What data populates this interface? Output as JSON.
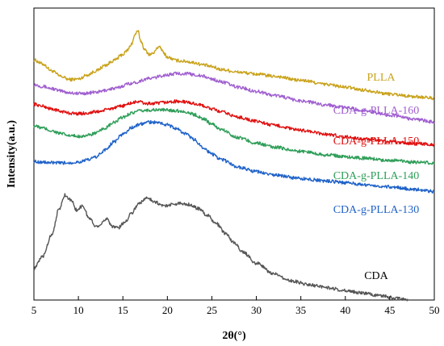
{
  "chart_data": {
    "type": "line",
    "title": "",
    "xlabel": "2θ(°)",
    "ylabel": "Intensity(a.u.)",
    "xlim": [
      5,
      50
    ],
    "xticks": [
      "5",
      "10",
      "15",
      "20",
      "25",
      "30",
      "35",
      "40",
      "45",
      "50"
    ],
    "y_ticks_shown": false,
    "grid": false,
    "legend": "inline labels on the right",
    "series": [
      {
        "name": "PLLA",
        "color": "#c9a21a",
        "x": [
          5,
          6,
          7,
          8,
          9,
          10,
          11,
          12,
          13,
          14,
          15,
          15.5,
          16,
          16.4,
          16.7,
          17,
          17.5,
          18,
          18.5,
          18.8,
          19.2,
          19.6,
          20,
          21,
          22,
          23,
          24,
          25,
          26,
          28,
          30,
          32,
          35,
          38,
          40,
          42,
          45,
          48,
          50
        ],
        "y": [
          0.88,
          0.865,
          0.84,
          0.82,
          0.808,
          0.81,
          0.825,
          0.84,
          0.86,
          0.878,
          0.9,
          0.915,
          0.94,
          0.975,
          0.985,
          0.95,
          0.915,
          0.9,
          0.905,
          0.925,
          0.925,
          0.905,
          0.89,
          0.878,
          0.875,
          0.87,
          0.862,
          0.855,
          0.845,
          0.835,
          0.828,
          0.82,
          0.805,
          0.79,
          0.78,
          0.77,
          0.755,
          0.745,
          0.74
        ]
      },
      {
        "name": "CDA-g-PLLA-160",
        "color": "#a05fd0",
        "x": [
          5,
          6,
          7,
          8,
          9,
          10,
          11,
          12,
          14,
          16,
          18,
          20,
          21,
          22,
          23,
          24,
          25,
          26,
          28,
          30,
          32,
          35,
          38,
          40,
          42,
          45,
          48,
          50
        ],
        "y": [
          0.79,
          0.783,
          0.775,
          0.766,
          0.76,
          0.757,
          0.758,
          0.762,
          0.775,
          0.795,
          0.812,
          0.825,
          0.83,
          0.83,
          0.826,
          0.82,
          0.81,
          0.8,
          0.78,
          0.765,
          0.75,
          0.73,
          0.715,
          0.705,
          0.695,
          0.678,
          0.662,
          0.652
        ]
      },
      {
        "name": "CDA-g-PLLA-150",
        "color": "#e01010",
        "x": [
          5,
          6,
          7,
          8,
          9,
          10,
          11,
          12,
          14,
          15,
          16,
          16.8,
          17.5,
          18.5,
          20,
          21,
          22,
          23,
          24,
          25,
          26,
          28,
          30,
          32,
          35,
          38,
          40,
          42,
          45,
          48,
          50
        ],
        "y": [
          0.718,
          0.71,
          0.7,
          0.692,
          0.685,
          0.683,
          0.685,
          0.69,
          0.703,
          0.712,
          0.722,
          0.728,
          0.72,
          0.72,
          0.725,
          0.728,
          0.726,
          0.72,
          0.712,
          0.7,
          0.69,
          0.67,
          0.655,
          0.64,
          0.622,
          0.607,
          0.598,
          0.59,
          0.58,
          0.573,
          0.57
        ]
      },
      {
        "name": "CDA-g-PLLA-140",
        "color": "#2e9e58",
        "x": [
          5,
          6,
          7,
          8,
          9,
          10,
          11,
          12,
          13,
          14,
          15,
          16,
          17,
          18,
          19,
          20,
          21,
          22,
          23,
          24,
          25,
          26,
          28,
          30,
          32,
          35,
          38,
          40,
          42,
          45,
          48,
          50
        ],
        "y": [
          0.638,
          0.63,
          0.62,
          0.61,
          0.602,
          0.6,
          0.603,
          0.612,
          0.63,
          0.65,
          0.67,
          0.686,
          0.693,
          0.696,
          0.697,
          0.696,
          0.694,
          0.69,
          0.68,
          0.665,
          0.645,
          0.625,
          0.595,
          0.575,
          0.56,
          0.545,
          0.532,
          0.525,
          0.52,
          0.512,
          0.505,
          0.502
        ]
      },
      {
        "name": "CDA-g-PLLA-130",
        "color": "#1f62c8",
        "x": [
          5,
          6,
          7,
          8,
          9,
          10,
          11,
          12,
          13,
          14,
          15,
          16,
          17,
          18,
          19,
          20,
          21,
          22,
          23,
          24,
          25,
          26,
          28,
          30,
          32,
          35,
          38,
          40,
          42,
          45,
          48,
          50
        ],
        "y": [
          0.508,
          0.505,
          0.503,
          0.502,
          0.503,
          0.506,
          0.513,
          0.525,
          0.55,
          0.58,
          0.608,
          0.632,
          0.645,
          0.652,
          0.65,
          0.642,
          0.628,
          0.61,
          0.588,
          0.56,
          0.535,
          0.515,
          0.487,
          0.47,
          0.458,
          0.445,
          0.436,
          0.43,
          0.423,
          0.415,
          0.405,
          0.398
        ]
      },
      {
        "name": "CDA",
        "color": "#555555",
        "x": [
          5,
          6,
          7,
          7.8,
          8.5,
          9.2,
          9.8,
          10.5,
          11.2,
          12,
          12.6,
          13.2,
          13.8,
          14.5,
          15.2,
          16,
          16.8,
          17.8,
          18.6,
          19.5,
          20.5,
          21.5,
          22.5,
          23.5,
          24.5,
          25.5,
          26.5,
          27.5,
          28.5,
          30,
          32,
          34,
          36,
          38,
          40,
          42,
          44,
          46,
          47
        ],
        "y": [
          0.115,
          0.16,
          0.24,
          0.33,
          0.385,
          0.365,
          0.33,
          0.345,
          0.3,
          0.27,
          0.28,
          0.3,
          0.27,
          0.265,
          0.285,
          0.32,
          0.355,
          0.375,
          0.36,
          0.345,
          0.35,
          0.355,
          0.35,
          0.335,
          0.31,
          0.28,
          0.245,
          0.21,
          0.175,
          0.135,
          0.095,
          0.07,
          0.055,
          0.045,
          0.035,
          0.025,
          0.015,
          0.005,
          0.0
        ]
      }
    ]
  }
}
